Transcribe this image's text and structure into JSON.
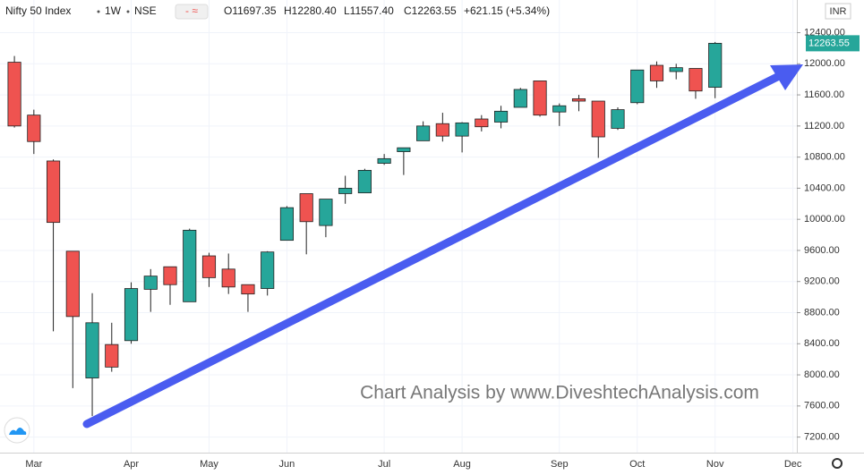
{
  "chart_data": {
    "type": "candlestick",
    "header": {
      "symbol": "Nifty 50 Index",
      "interval": "1W",
      "exchange": "NSE",
      "ohlc": [
        "O11697.35",
        "H12280.40",
        "L11557.40",
        "C12263.55",
        "+621.15 (+5.34%)"
      ]
    },
    "currency": "INR",
    "annotation": "Chart Analysis by www.DiveshtechAnalysis.com",
    "up_color": "#26a69a",
    "down_color": "#ef5350",
    "arrow_color": "#4a5cf0",
    "categories": [
      null,
      null,
      null,
      null,
      null,
      null,
      null,
      null,
      null,
      null,
      null,
      null,
      null,
      null,
      null,
      null,
      null,
      null,
      null,
      null,
      null,
      null,
      null,
      null,
      null,
      null,
      null,
      null,
      null,
      null,
      null,
      null,
      null,
      null,
      null,
      null,
      null
    ],
    "open": [
      12020,
      11340,
      10750,
      9590,
      7960,
      8390,
      8440,
      9100,
      9390,
      8940,
      9530,
      9360,
      9160,
      9110,
      9730,
      10330,
      9920,
      10330,
      10340,
      10720,
      10870,
      11010,
      11230,
      11070,
      11290,
      11250,
      11440,
      11780,
      11380,
      11550,
      11520,
      11170,
      11500,
      11980,
      11900,
      11940,
      11697.35
    ],
    "high": [
      12100,
      11410,
      10770,
      9590,
      9050,
      8670,
      9190,
      9360,
      9390,
      9880,
      9570,
      9560,
      9160,
      9590,
      10170,
      10330,
      10260,
      10560,
      10650,
      10840,
      10920,
      11260,
      11370,
      11250,
      11340,
      11460,
      11690,
      11780,
      11490,
      11600,
      11520,
      11440,
      11920,
      12030,
      12000,
      11940,
      12280.4
    ],
    "low": [
      11180,
      10840,
      8560,
      7830,
      7470,
      8040,
      8400,
      8810,
      8900,
      8940,
      9130,
      9040,
      8810,
      9020,
      9730,
      9550,
      9770,
      10200,
      10340,
      10700,
      10570,
      11010,
      11000,
      10860,
      11130,
      11170,
      11440,
      11320,
      11200,
      11390,
      10790,
      11150,
      11480,
      11690,
      11800,
      11550,
      11557.4
    ],
    "close": [
      11200,
      11000,
      9960,
      8750,
      8670,
      8100,
      9110,
      9270,
      9160,
      9860,
      9250,
      9130,
      9040,
      9580,
      10150,
      9970,
      10260,
      10400,
      10630,
      10780,
      10920,
      11200,
      11070,
      11240,
      11190,
      11390,
      11670,
      11340,
      11460,
      11520,
      11060,
      11410,
      11920,
      11780,
      11950,
      11650,
      12263.55
    ],
    "last_price": {
      "value": 12263.55,
      "label": "12263.55"
    },
    "xlim": [
      -0.74,
      40.2
    ],
    "xticks": [
      {
        "value": 1,
        "label": "Mar"
      },
      {
        "value": 6,
        "label": "Apr"
      },
      {
        "value": 10,
        "label": "May"
      },
      {
        "value": 14,
        "label": "Jun"
      },
      {
        "value": 19,
        "label": "Jul"
      },
      {
        "value": 23,
        "label": "Aug"
      },
      {
        "value": 28,
        "label": "Sep"
      },
      {
        "value": 32,
        "label": "Oct"
      },
      {
        "value": 36,
        "label": "Nov"
      },
      {
        "value": 40,
        "label": "Dec"
      }
    ],
    "ylim": [
      7000,
      12820
    ],
    "yticks": [
      {
        "value": 7200,
        "label": "7200.00"
      },
      {
        "value": 7600,
        "label": "7600.00"
      },
      {
        "value": 8000,
        "label": "8000.00"
      },
      {
        "value": 8400,
        "label": "8400.00"
      },
      {
        "value": 8800,
        "label": "8800.00"
      },
      {
        "value": 9200,
        "label": "9200.00"
      },
      {
        "value": 9600,
        "label": "9600.00"
      },
      {
        "value": 10000,
        "label": "10000.00"
      },
      {
        "value": 10400,
        "label": "10400.00"
      },
      {
        "value": 10800,
        "label": "10800.00"
      },
      {
        "value": 11200,
        "label": "11200.00"
      },
      {
        "value": 11600,
        "label": "11600.00"
      },
      {
        "value": 12000,
        "label": "12000.00"
      },
      {
        "value": 12400,
        "label": "12400.00"
      }
    ]
  }
}
